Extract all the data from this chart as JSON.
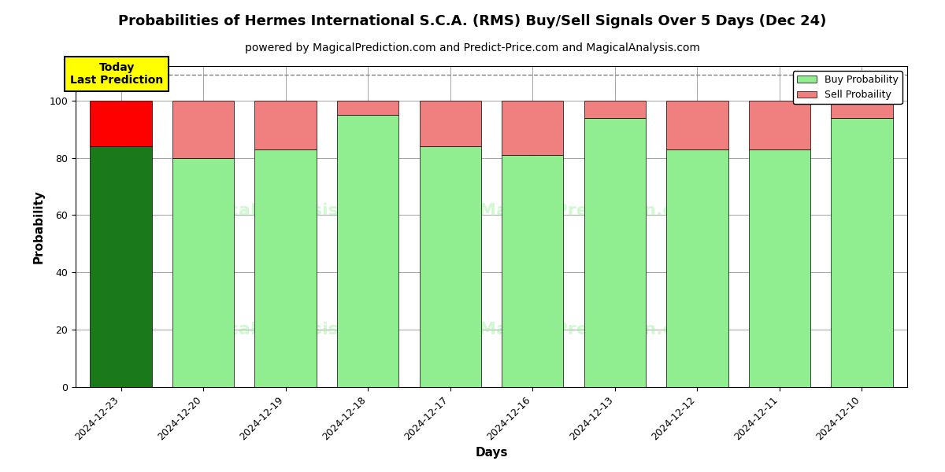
{
  "title": "Probabilities of Hermes International S.C.A. (RMS) Buy/Sell Signals Over 5 Days (Dec 24)",
  "subtitle": "powered by MagicalPrediction.com and Predict-Price.com and MagicalAnalysis.com",
  "xlabel": "Days",
  "ylabel": "Probability",
  "categories": [
    "2024-12-23",
    "2024-12-20",
    "2024-12-19",
    "2024-12-18",
    "2024-12-17",
    "2024-12-16",
    "2024-12-13",
    "2024-12-12",
    "2024-12-11",
    "2024-12-10"
  ],
  "buy_values": [
    84,
    80,
    83,
    95,
    84,
    81,
    94,
    83,
    83,
    94
  ],
  "sell_values": [
    16,
    20,
    17,
    5,
    16,
    19,
    6,
    17,
    17,
    6
  ],
  "today_buy_color": "#1a7a1a",
  "today_sell_color": "#ff0000",
  "other_buy_color": "#90ee90",
  "other_sell_color": "#f08080",
  "today_annotation": "Today\nLast Prediction",
  "legend_buy_label": "Buy Probability",
  "legend_sell_label": "Sell Probaility",
  "ylim": [
    0,
    112
  ],
  "yticks": [
    0,
    20,
    40,
    60,
    80,
    100
  ],
  "dashed_line_y": 109,
  "title_fontsize": 13,
  "subtitle_fontsize": 10,
  "axis_label_fontsize": 11,
  "tick_fontsize": 9,
  "background_color": "#ffffff",
  "watermark_color": "#90ee90",
  "watermark_alpha": 0.4
}
